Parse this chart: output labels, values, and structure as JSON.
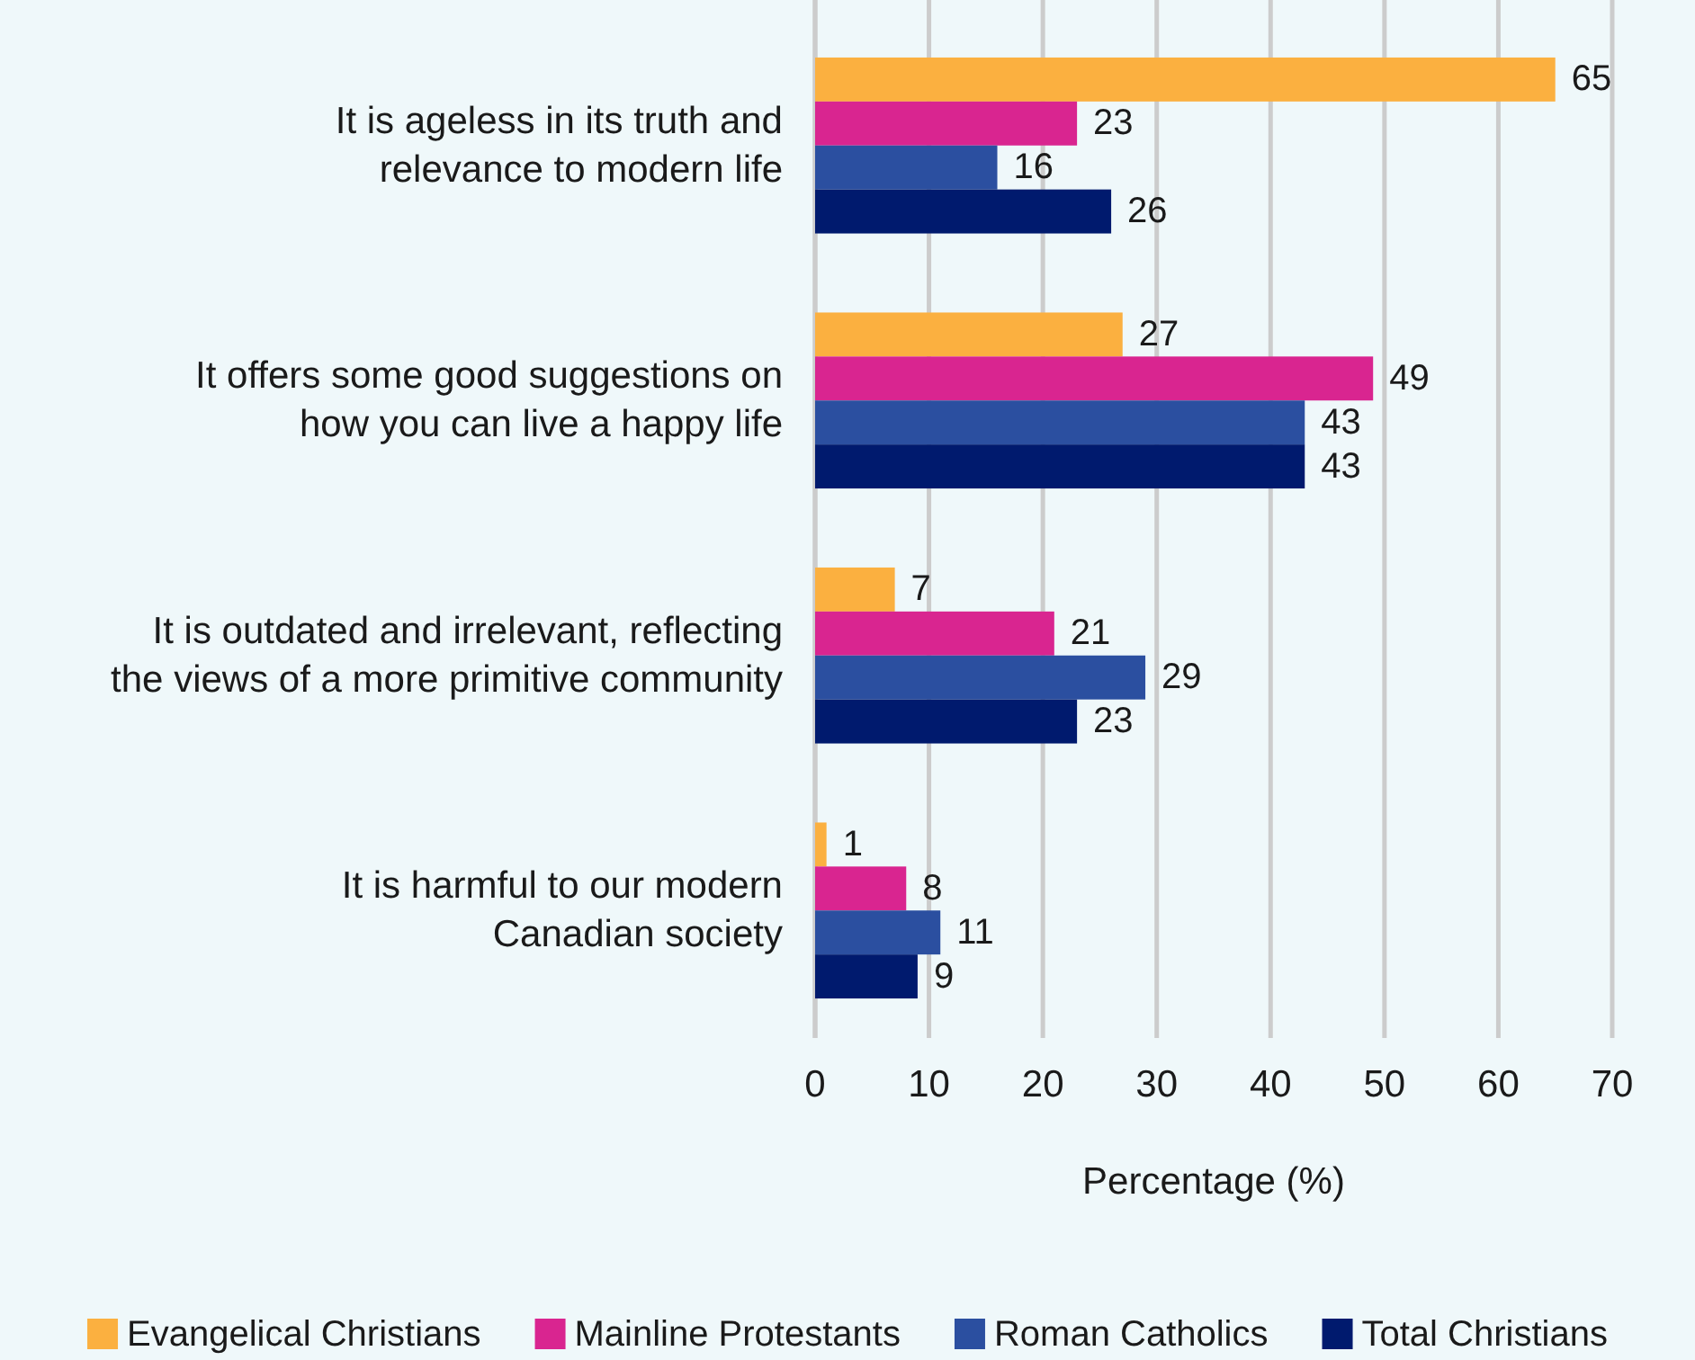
{
  "chart_data": {
    "type": "bar",
    "orientation": "horizontal",
    "categories": [
      "It is ageless in its truth and\nrelevance to modern life",
      "It offers some good suggestions on\nhow you can live a happy life",
      "It is outdated and irrelevant, reflecting\nthe views of a more primitive community",
      "It is harmful to our modern\nCanadian society"
    ],
    "series": [
      {
        "name": "Evangelical Christians",
        "color": "#fbb040",
        "values": [
          65,
          27,
          7,
          1
        ]
      },
      {
        "name": "Mainline Protestants",
        "color": "#d92590",
        "values": [
          23,
          49,
          21,
          8
        ]
      },
      {
        "name": "Roman Catholics",
        "color": "#2b4fa0",
        "values": [
          16,
          43,
          29,
          11
        ]
      },
      {
        "name": "Total Christians",
        "color": "#001a6e",
        "values": [
          26,
          43,
          23,
          9
        ]
      }
    ],
    "xlim": [
      0,
      70
    ],
    "xticks": [
      0,
      10,
      20,
      30,
      40,
      50,
      60,
      70
    ],
    "xlabel": "Percentage (%)",
    "grid": "x",
    "legend": "bottom",
    "data_labels": true
  }
}
